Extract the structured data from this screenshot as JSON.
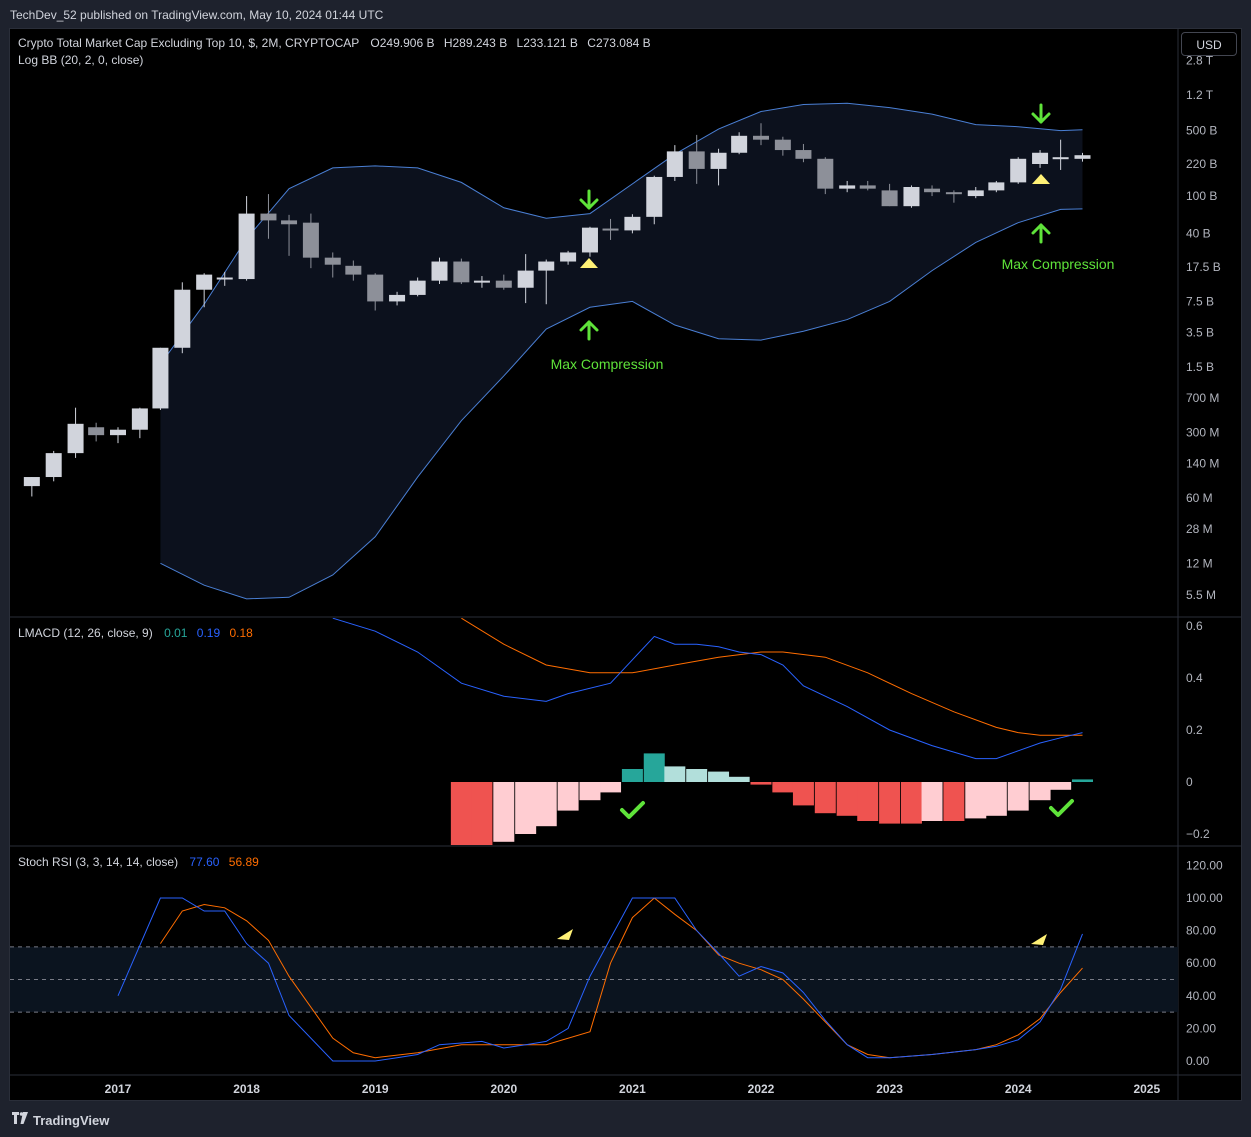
{
  "header": {
    "published": "TechDev_52 published on TradingView.com, May 10, 2024 01:44 UTC"
  },
  "currency_button": "USD",
  "footer": {
    "brand": "TradingView"
  },
  "colors": {
    "up": "#d1d4dc",
    "down": "#8d9099",
    "bands": "#4a7fd4",
    "macd": "#2962ff",
    "signal": "#ff6d00",
    "hist_up_strong": "#26a69a",
    "hist_up_weak": "#b2dfdb",
    "hist_down_strong": "#ef5350",
    "hist_down_weak": "#ffcdd2",
    "annotation": "#5fe33a",
    "marker": "#fff176"
  },
  "chart_data": [
    {
      "type": "candlestick",
      "title": "Crypto Total Market Cap Excluding Top 10, $, 2M, CRYPTOCAP",
      "ohlc_label": {
        "O": "O249.906 B",
        "H": "H289.243 B",
        "L": "L233.121 B",
        "C": "C273.084 B"
      },
      "indicator_label": "Log BB (20, 2, 0, close)",
      "scale": "log",
      "y_ticks": [
        "2.8 T",
        "1.2 T",
        "500 B",
        "220 B",
        "100 B",
        "40 B",
        "17.5 B",
        "7.5 B",
        "3.5 B",
        "1.5 B",
        "700 M",
        "300 M",
        "140 M",
        "60 M",
        "28 M",
        "12 M",
        "5.5 M"
      ],
      "y_tick_values": [
        2800000000000.0,
        1200000000000.0,
        500000000000.0,
        220000000000.0,
        100000000000.0,
        40000000000.0,
        17500000000.0,
        7500000000.0,
        3500000000.0,
        1500000000.0,
        700000000.0,
        300000000.0,
        140000000.0,
        60000000.0,
        28000000.0,
        12000000.0,
        5500000.0
      ],
      "candles": [
        {
          "t": 2016.33,
          "o": 80000000.0,
          "h": 100000000.0,
          "l": 62000000.0,
          "c": 100000000.0
        },
        {
          "t": 2016.5,
          "o": 100000000.0,
          "h": 190000000.0,
          "l": 90000000.0,
          "c": 180000000.0
        },
        {
          "t": 2016.67,
          "o": 180000000.0,
          "h": 550000000.0,
          "l": 160000000.0,
          "c": 370000000.0
        },
        {
          "t": 2016.83,
          "o": 340000000.0,
          "h": 380000000.0,
          "l": 240000000.0,
          "c": 280000000.0
        },
        {
          "t": 2017.0,
          "o": 280000000.0,
          "h": 340000000.0,
          "l": 230000000.0,
          "c": 320000000.0
        },
        {
          "t": 2017.17,
          "o": 320000000.0,
          "h": 550000000.0,
          "l": 260000000.0,
          "c": 540000000.0
        },
        {
          "t": 2017.33,
          "o": 540000000.0,
          "h": 2400000000.0,
          "l": 520000000.0,
          "c": 2400000000.0
        },
        {
          "t": 2017.5,
          "o": 2400000000.0,
          "h": 12000000000.0,
          "l": 2100000000.0,
          "c": 10000000000.0
        },
        {
          "t": 2017.67,
          "o": 10000000000.0,
          "h": 15000000000.0,
          "l": 6500000000.0,
          "c": 14500000000.0
        },
        {
          "t": 2017.83,
          "o": 13000000000.0,
          "h": 15500000000.0,
          "l": 11000000000.0,
          "c": 13500000000.0
        },
        {
          "t": 2018.0,
          "o": 13000000000.0,
          "h": 100000000000.0,
          "l": 12500000000.0,
          "c": 65000000000.0
        },
        {
          "t": 2018.17,
          "o": 65000000000.0,
          "h": 105000000000.0,
          "l": 35000000000.0,
          "c": 55000000000.0
        },
        {
          "t": 2018.33,
          "o": 55000000000.0,
          "h": 63000000000.0,
          "l": 23000000000.0,
          "c": 50000000000.0
        },
        {
          "t": 2018.5,
          "o": 52000000000.0,
          "h": 65000000000.0,
          "l": 17000000000.0,
          "c": 22000000000.0
        },
        {
          "t": 2018.67,
          "o": 22000000000.0,
          "h": 25000000000.0,
          "l": 13500000000.0,
          "c": 18500000000.0
        },
        {
          "t": 2018.83,
          "o": 18000000000.0,
          "h": 20500000000.0,
          "l": 12500000000.0,
          "c": 14500000000.0
        },
        {
          "t": 2019.0,
          "o": 14500000000.0,
          "h": 15000000000.0,
          "l": 6000000000.0,
          "c": 7500000000.0
        },
        {
          "t": 2019.17,
          "o": 7500000000.0,
          "h": 9500000000.0,
          "l": 6800000000.0,
          "c": 8800000000.0
        },
        {
          "t": 2019.33,
          "o": 8800000000.0,
          "h": 13500000000.0,
          "l": 8500000000.0,
          "c": 12500000000.0
        },
        {
          "t": 2019.5,
          "o": 12500000000.0,
          "h": 22000000000.0,
          "l": 11500000000.0,
          "c": 20000000000.0
        },
        {
          "t": 2019.67,
          "o": 20000000000.0,
          "h": 21500000000.0,
          "l": 11500000000.0,
          "c": 12000000000.0
        },
        {
          "t": 2019.83,
          "o": 12000000000.0,
          "h": 14000000000.0,
          "l": 10500000000.0,
          "c": 12500000000.0
        },
        {
          "t": 2020.0,
          "o": 12500000000.0,
          "h": 14500000000.0,
          "l": 10000000000.0,
          "c": 10500000000.0
        },
        {
          "t": 2020.17,
          "o": 10500000000.0,
          "h": 24000000000.0,
          "l": 7200000000.0,
          "c": 16000000000.0
        },
        {
          "t": 2020.33,
          "o": 16000000000.0,
          "h": 21000000000.0,
          "l": 7000000000.0,
          "c": 20000000000.0
        },
        {
          "t": 2020.5,
          "o": 20000000000.0,
          "h": 26000000000.0,
          "l": 18500000000.0,
          "c": 25000000000.0
        },
        {
          "t": 2020.67,
          "o": 25000000000.0,
          "h": 47000000000.0,
          "l": 22500000000.0,
          "c": 46000000000.0
        },
        {
          "t": 2020.83,
          "o": 45000000000.0,
          "h": 57000000000.0,
          "l": 34000000000.0,
          "c": 43000000000.0
        },
        {
          "t": 2021.0,
          "o": 43000000000.0,
          "h": 64000000000.0,
          "l": 40000000000.0,
          "c": 60000000000.0
        },
        {
          "t": 2021.17,
          "o": 60000000000.0,
          "h": 165000000000.0,
          "l": 50000000000.0,
          "c": 160000000000.0
        },
        {
          "t": 2021.33,
          "o": 160000000000.0,
          "h": 350000000000.0,
          "l": 145000000000.0,
          "c": 300000000000.0
        },
        {
          "t": 2021.5,
          "o": 300000000000.0,
          "h": 450000000000.0,
          "l": 135000000000.0,
          "c": 195000000000.0
        },
        {
          "t": 2021.67,
          "o": 195000000000.0,
          "h": 320000000000.0,
          "l": 130000000000.0,
          "c": 290000000000.0
        },
        {
          "t": 2021.83,
          "o": 290000000000.0,
          "h": 480000000000.0,
          "l": 280000000000.0,
          "c": 440000000000.0
        },
        {
          "t": 2022.0,
          "o": 440000000000.0,
          "h": 600000000000.0,
          "l": 350000000000.0,
          "c": 400000000000.0
        },
        {
          "t": 2022.17,
          "o": 400000000000.0,
          "h": 430000000000.0,
          "l": 270000000000.0,
          "c": 310000000000.0
        },
        {
          "t": 2022.33,
          "o": 310000000000.0,
          "h": 360000000000.0,
          "l": 230000000000.0,
          "c": 250000000000.0
        },
        {
          "t": 2022.5,
          "o": 250000000000.0,
          "h": 260000000000.0,
          "l": 105000000000.0,
          "c": 120000000000.0
        },
        {
          "t": 2022.67,
          "o": 120000000000.0,
          "h": 145000000000.0,
          "l": 110000000000.0,
          "c": 130000000000.0
        },
        {
          "t": 2022.83,
          "o": 130000000000.0,
          "h": 145000000000.0,
          "l": 115000000000.0,
          "c": 120000000000.0
        },
        {
          "t": 2023.0,
          "o": 115000000000.0,
          "h": 135000000000.0,
          "l": 78000000000.0,
          "c": 78000000000.0
        },
        {
          "t": 2023.17,
          "o": 78000000000.0,
          "h": 130000000000.0,
          "l": 75000000000.0,
          "c": 125000000000.0
        },
        {
          "t": 2023.33,
          "o": 120000000000.0,
          "h": 130000000000.0,
          "l": 100000000000.0,
          "c": 110000000000.0
        },
        {
          "t": 2023.5,
          "o": 110000000000.0,
          "h": 115000000000.0,
          "l": 85000000000.0,
          "c": 105000000000.0
        },
        {
          "t": 2023.67,
          "o": 100000000000.0,
          "h": 125000000000.0,
          "l": 95000000000.0,
          "c": 115000000000.0
        },
        {
          "t": 2023.83,
          "o": 115000000000.0,
          "h": 145000000000.0,
          "l": 110000000000.0,
          "c": 140000000000.0
        },
        {
          "t": 2024.0,
          "o": 140000000000.0,
          "h": 260000000000.0,
          "l": 135000000000.0,
          "c": 250000000000.0
        },
        {
          "t": 2024.17,
          "o": 220000000000.0,
          "h": 310000000000.0,
          "l": 200000000000.0,
          "c": 290000000000.0
        },
        {
          "t": 2024.33,
          "o": 250000000000.0,
          "h": 400000000000.0,
          "l": 190000000000.0,
          "c": 260000000000.0
        },
        {
          "t": 2024.5,
          "o": 249900000000.0,
          "h": 289200000000.0,
          "l": 233100000000.0,
          "c": 273100000000.0
        }
      ],
      "bollinger": {
        "t": [
          2017.33,
          2017.67,
          2018.0,
          2018.33,
          2018.67,
          2019.0,
          2019.33,
          2019.67,
          2020.0,
          2020.33,
          2020.67,
          2021.0,
          2021.33,
          2021.67,
          2022.0,
          2022.33,
          2022.67,
          2023.0,
          2023.33,
          2023.67,
          2024.0,
          2024.33,
          2024.5
        ],
        "upper": [
          1600000000.0,
          7000000000.0,
          35000000000.0,
          120000000000.0,
          200000000000.0,
          210000000000.0,
          200000000000.0,
          140000000000.0,
          75000000000.0,
          58000000000.0,
          65000000000.0,
          135000000000.0,
          280000000000.0,
          520000000000.0,
          800000000000.0,
          950000000000.0,
          980000000000.0,
          880000000000.0,
          750000000000.0,
          580000000000.0,
          550000000000.0,
          500000000000.0,
          510000000000.0
        ],
        "lower": [
          12000000.0,
          7000000.0,
          5000000.0,
          5200000.0,
          9000000.0,
          23000000.0,
          100000000.0,
          400000000.0,
          1200000000.0,
          3800000000.0,
          6500000000.0,
          7500000000.0,
          4200000000.0,
          3000000000.0,
          2900000000.0,
          3600000000.0,
          4800000000.0,
          7500000000.0,
          16000000000.0,
          32000000000.0,
          52000000000.0,
          72000000000.0,
          73000000000.0
        ]
      },
      "annotations": [
        "Max Compression",
        "Max Compression"
      ]
    },
    {
      "type": "bar+line",
      "title": "LMACD (12, 26, close, 9)",
      "legend_values": [
        "0.01",
        "0.19",
        "0.18"
      ],
      "y_ticks": [
        "0.6",
        "0.4",
        "0.2",
        "0",
        "−0.2"
      ],
      "y_tick_values": [
        0.6,
        0.4,
        0.2,
        0,
        -0.2
      ],
      "macd": {
        "t": [
          2018.67,
          2019.0,
          2019.33,
          2019.67,
          2020.0,
          2020.33,
          2020.5,
          2020.83,
          2021.0,
          2021.17,
          2021.33,
          2021.5,
          2021.67,
          2021.83,
          2022.0,
          2022.17,
          2022.33,
          2022.67,
          2023.0,
          2023.33,
          2023.67,
          2023.83,
          2024.0,
          2024.17,
          2024.33,
          2024.5
        ],
        "values": [
          0.63,
          0.58,
          0.5,
          0.38,
          0.33,
          0.31,
          0.34,
          0.38,
          0.47,
          0.56,
          0.53,
          0.53,
          0.52,
          0.5,
          0.49,
          0.45,
          0.37,
          0.29,
          0.2,
          0.14,
          0.09,
          0.09,
          0.12,
          0.15,
          0.17,
          0.19
        ]
      },
      "signal": {
        "t": [
          2019.67,
          2020.0,
          2020.33,
          2020.67,
          2021.0,
          2021.33,
          2021.67,
          2022.0,
          2022.17,
          2022.5,
          2022.83,
          2023.17,
          2023.5,
          2023.83,
          2024.0,
          2024.17,
          2024.33,
          2024.5
        ],
        "values": [
          0.63,
          0.53,
          0.45,
          0.42,
          0.42,
          0.45,
          0.48,
          0.5,
          0.5,
          0.48,
          0.42,
          0.34,
          0.27,
          0.21,
          0.19,
          0.18,
          0.18,
          0.18
        ]
      },
      "histogram": {
        "t": [
          2019.67,
          2019.83,
          2020.0,
          2020.17,
          2020.33,
          2020.5,
          2020.67,
          2020.83,
          2021.0,
          2021.17,
          2021.33,
          2021.5,
          2021.67,
          2021.83,
          2022.0,
          2022.17,
          2022.33,
          2022.5,
          2022.67,
          2022.83,
          2023.0,
          2023.17,
          2023.33,
          2023.5,
          2023.67,
          2023.83,
          2024.0,
          2024.17,
          2024.33,
          2024.5
        ],
        "values": [
          -0.25,
          -0.25,
          -0.23,
          -0.2,
          -0.17,
          -0.11,
          -0.07,
          -0.04,
          0.05,
          0.11,
          0.06,
          0.05,
          0.04,
          0.02,
          -0.01,
          -0.04,
          -0.09,
          -0.12,
          -0.13,
          -0.15,
          -0.16,
          -0.16,
          -0.15,
          -0.15,
          -0.14,
          -0.13,
          -0.11,
          -0.07,
          -0.03,
          0.01
        ]
      }
    },
    {
      "type": "line",
      "title": "Stoch RSI (3, 3, 14, 14, close)",
      "legend_values": [
        "77.60",
        "56.89"
      ],
      "y_ticks": [
        "120.00",
        "100.00",
        "80.00",
        "60.00",
        "40.00",
        "20.00",
        "0.00"
      ],
      "y_tick_values": [
        120,
        100,
        80,
        60,
        40,
        20,
        0
      ],
      "bands": [
        30,
        50,
        70
      ],
      "k": {
        "t": [
          2017.0,
          2017.33,
          2017.5,
          2017.67,
          2017.83,
          2018.0,
          2018.17,
          2018.33,
          2018.67,
          2018.83,
          2019.0,
          2019.17,
          2019.33,
          2019.5,
          2019.83,
          2020.0,
          2020.17,
          2020.33,
          2020.5,
          2020.67,
          2021.0,
          2021.17,
          2021.33,
          2021.5,
          2021.67,
          2021.83,
          2022.0,
          2022.17,
          2022.33,
          2022.5,
          2022.67,
          2022.83,
          2023.0,
          2023.33,
          2023.67,
          2023.83,
          2024.0,
          2024.17,
          2024.33,
          2024.5
        ],
        "values": [
          40,
          100,
          100,
          92,
          92,
          72,
          60,
          28,
          0,
          0,
          0,
          2,
          4,
          10,
          12,
          8,
          10,
          12,
          20,
          52,
          100,
          100,
          100,
          80,
          66,
          52,
          58,
          54,
          42,
          25,
          10,
          2,
          2,
          4,
          7,
          9,
          13,
          24,
          44,
          78
        ]
      },
      "d": {
        "t": [
          2017.33,
          2017.5,
          2017.67,
          2017.83,
          2018.0,
          2018.17,
          2018.33,
          2018.67,
          2018.83,
          2019.0,
          2019.33,
          2019.67,
          2020.0,
          2020.33,
          2020.67,
          2020.83,
          2021.0,
          2021.17,
          2021.33,
          2021.5,
          2021.67,
          2021.83,
          2022.0,
          2022.17,
          2022.33,
          2022.67,
          2022.83,
          2023.0,
          2023.33,
          2023.67,
          2023.83,
          2024.0,
          2024.17,
          2024.33,
          2024.5
        ],
        "values": [
          72,
          92,
          96,
          94,
          86,
          74,
          52,
          14,
          5,
          2,
          5,
          10,
          10,
          10,
          18,
          60,
          88,
          100,
          90,
          80,
          65,
          60,
          56,
          50,
          38,
          10,
          4,
          2,
          4,
          7,
          10,
          16,
          26,
          42,
          57
        ]
      }
    }
  ],
  "x_axis": {
    "ticks": [
      "2017",
      "2018",
      "2019",
      "2020",
      "2021",
      "2022",
      "2023",
      "2024",
      "2025"
    ],
    "tick_values": [
      2017,
      2018,
      2019,
      2020,
      2021,
      2022,
      2023,
      2024,
      2025
    ]
  }
}
